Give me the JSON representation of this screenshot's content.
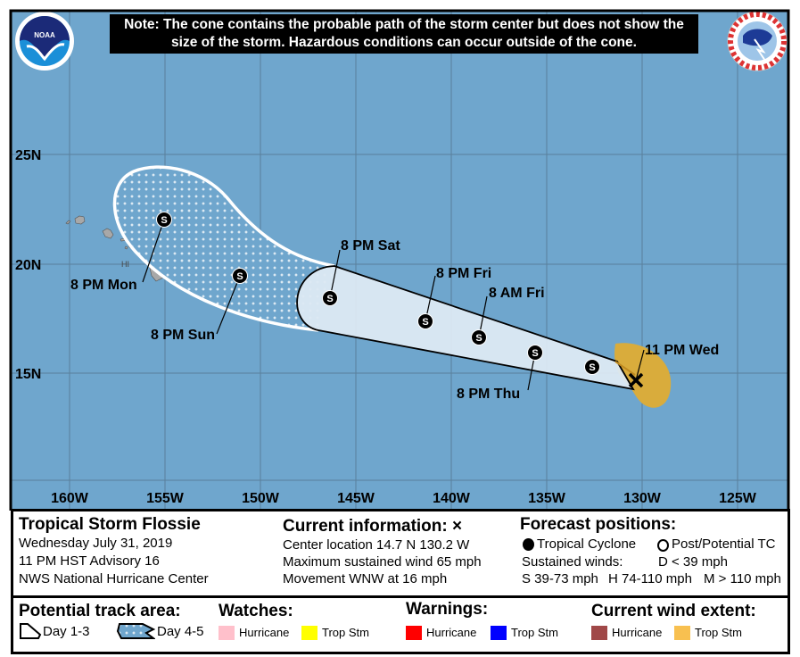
{
  "note": "Note: The cone contains the probable path of the storm center but does not show the size of the storm. Hazardous conditions can occur outside of the cone.",
  "logos": {
    "left": "NOAA",
    "right": "NATIONAL WEATHER SERVICE"
  },
  "map": {
    "lat_labels": [
      "25N",
      "20N",
      "15N"
    ],
    "lon_labels": [
      "160W",
      "155W",
      "150W",
      "145W",
      "140W",
      "135W",
      "130W",
      "125W"
    ],
    "state_label": "HI",
    "current_position": {
      "time": "11 PM Wed",
      "lat": 14.7,
      "lon": -130.2
    },
    "forecast_labels": [
      "8 PM Thu",
      "8 AM Fri",
      "8 PM Fri",
      "8 PM Sat",
      "8 PM Sun",
      "8 PM Mon"
    ],
    "marker_letter": "S",
    "colors": {
      "ocean": "#6fa6cd",
      "cone": "#dce9f3",
      "wind_tropstm": "#d9ac3c",
      "land": "#a8a8a8"
    }
  },
  "info": {
    "storm_name": "Tropical Storm Flossie",
    "date": "Wednesday July 31, 2019",
    "advisory": "11 PM HST Advisory 16",
    "center": "NWS National Hurricane Center",
    "current_heading": "Current information: ×",
    "location": "Center location 14.7 N 130.2 W",
    "wind": "Maximum sustained wind 65 mph",
    "movement": "Movement WNW at 16 mph",
    "forecast_heading": "Forecast positions:",
    "tc": "Tropical Cyclone",
    "ptc": "Post/Potential TC",
    "sustained": "Sustained winds:",
    "d": "D < 39 mph",
    "s": "S 39-73 mph",
    "hcat": "H 74-110 mph",
    "m": "M > 110 mph"
  },
  "legend": {
    "track_heading": "Potential track area:",
    "day13": "Day 1-3",
    "day45": "Day 4-5",
    "watches": "Watches:",
    "warnings": "Warnings:",
    "wind_extent": "Current wind extent:",
    "hurricane": "Hurricane",
    "tropstm": "Trop Stm",
    "colors": {
      "watch_hurricane": "#ffc0cb",
      "watch_tropstm": "#ffff00",
      "warn_hurricane": "#ff0000",
      "warn_tropstm": "#0000ff",
      "wind_hurricane": "#a04848",
      "wind_tropstm": "#f8c050"
    }
  }
}
